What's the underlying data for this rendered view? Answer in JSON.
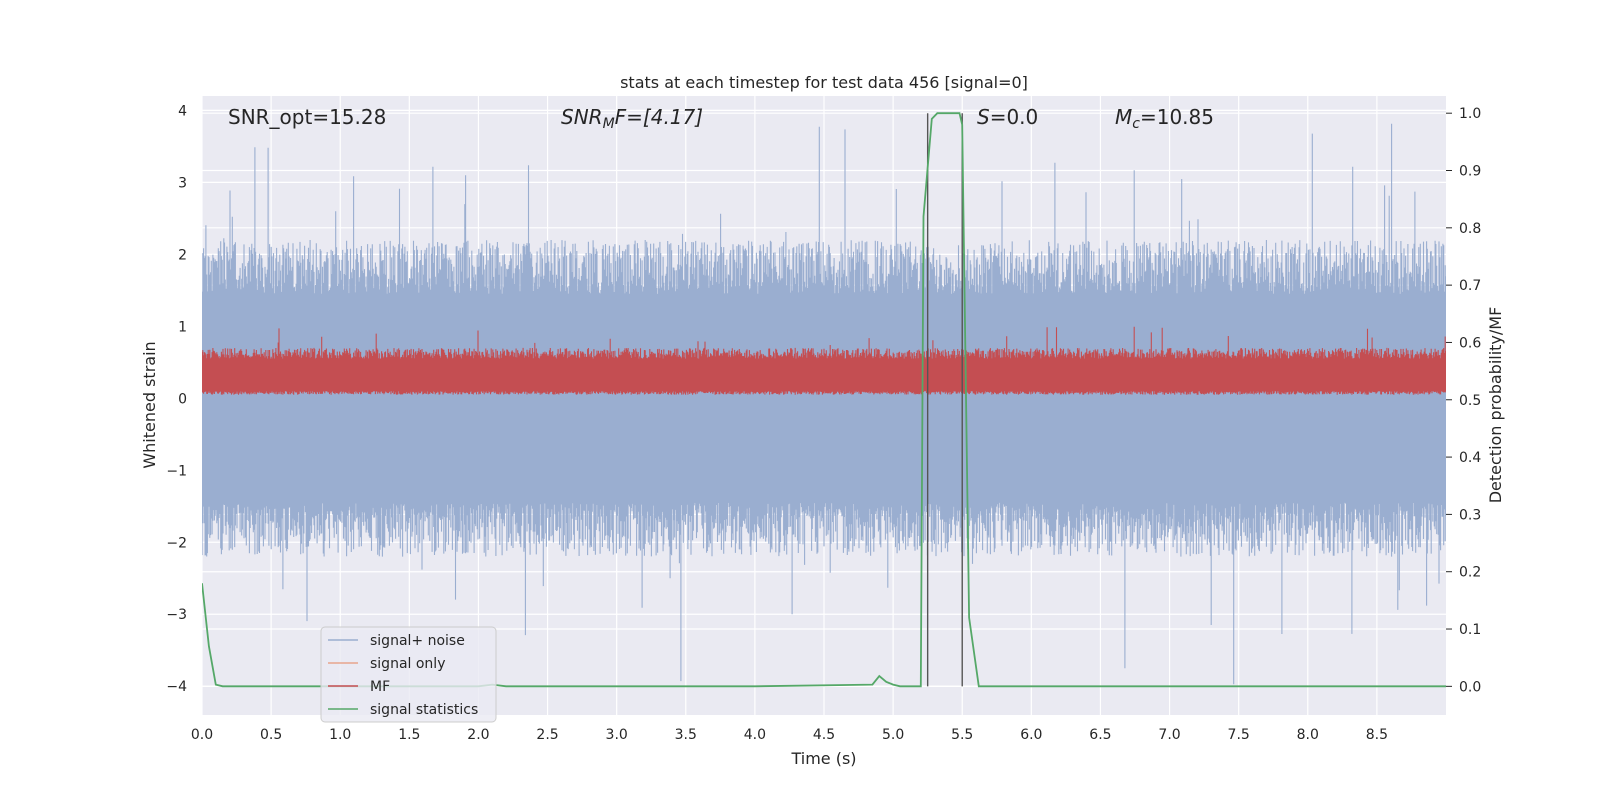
{
  "chart_data": {
    "type": "line",
    "title": "stats at each timestep for test data 456 [signal=0]",
    "xlabel": "Time (s)",
    "ylabel_left": "Whitened strain",
    "ylabel_right": "Detection probability/MF",
    "xlim": [
      0,
      9
    ],
    "ylim_left": [
      -4.4,
      4.2
    ],
    "ylim_right": [
      -0.05,
      1.03
    ],
    "grid": true,
    "x_ticks": [
      "0.0",
      "0.5",
      "1.0",
      "1.5",
      "2.0",
      "2.5",
      "3.0",
      "3.5",
      "4.0",
      "4.5",
      "5.0",
      "5.5",
      "6.0",
      "6.5",
      "7.0",
      "7.5",
      "8.0",
      "8.5"
    ],
    "y_ticks_left": [
      "4",
      "3",
      "2",
      "1",
      "0",
      "−1",
      "−2",
      "−3",
      "−4"
    ],
    "y_ticks_right": [
      "1.0",
      "0.9",
      "0.8",
      "0.7",
      "0.6",
      "0.5",
      "0.4",
      "0.3",
      "0.2",
      "0.1",
      "0.0"
    ],
    "annotations": {
      "snr_opt": "SNR_opt=15.28",
      "snr_mf_base": "SNR",
      "snr_mf_sub": "M",
      "snr_mf_rest": "F=[4.17]",
      "s_stat_base": "S",
      "s_stat_rest": "=0.0",
      "mc_base": "M",
      "mc_sub": "c",
      "mc_rest": "=10.85"
    },
    "legend": {
      "placement": "lower-left",
      "entries": [
        {
          "label": "signal+ noise",
          "color": "#9aaed0"
        },
        {
          "label": "signal only",
          "color": "#e8a58c"
        },
        {
          "label": "MF",
          "color": "#c44e52"
        },
        {
          "label": "signal statistics",
          "color": "#55a868"
        }
      ]
    },
    "series": [
      {
        "name": "signal+ noise",
        "axis": "left",
        "style": "noise band",
        "core_band": [
          -1.45,
          1.45
        ],
        "typical_range": [
          -2.2,
          2.2
        ],
        "extreme_range": [
          -4.0,
          3.85
        ]
      },
      {
        "name": "MF",
        "axis": "left",
        "style": "noise band",
        "core_band": [
          0.1,
          0.55
        ],
        "typical_range": [
          0.05,
          0.7
        ],
        "extreme_range": [
          0.0,
          1.0
        ]
      },
      {
        "name": "signal statistics",
        "axis": "right",
        "x": [
          0.0,
          0.05,
          0.1,
          0.15,
          0.5,
          1.0,
          1.5,
          2.0,
          2.1,
          2.2,
          2.5,
          3.0,
          4.0,
          4.85,
          4.9,
          4.95,
          5.0,
          5.05,
          5.1,
          5.15,
          5.2,
          5.22,
          5.28,
          5.32,
          5.4,
          5.48,
          5.5,
          5.55,
          5.62,
          5.7,
          6.0,
          7.0,
          8.0,
          9.0
        ],
        "y": [
          0.18,
          0.07,
          0.003,
          0.0,
          0.0,
          0.0,
          0.0,
          0.0,
          0.003,
          0.0,
          0.0,
          0.0,
          0.0,
          0.003,
          0.018,
          0.008,
          0.003,
          0.0,
          0.0,
          0.0,
          0.0,
          0.82,
          0.99,
          1.0,
          1.0,
          1.0,
          0.98,
          0.12,
          0.0,
          0.0,
          0.0,
          0.0,
          0.0,
          0.0
        ]
      }
    ],
    "vlines": [
      5.25,
      5.5
    ]
  }
}
